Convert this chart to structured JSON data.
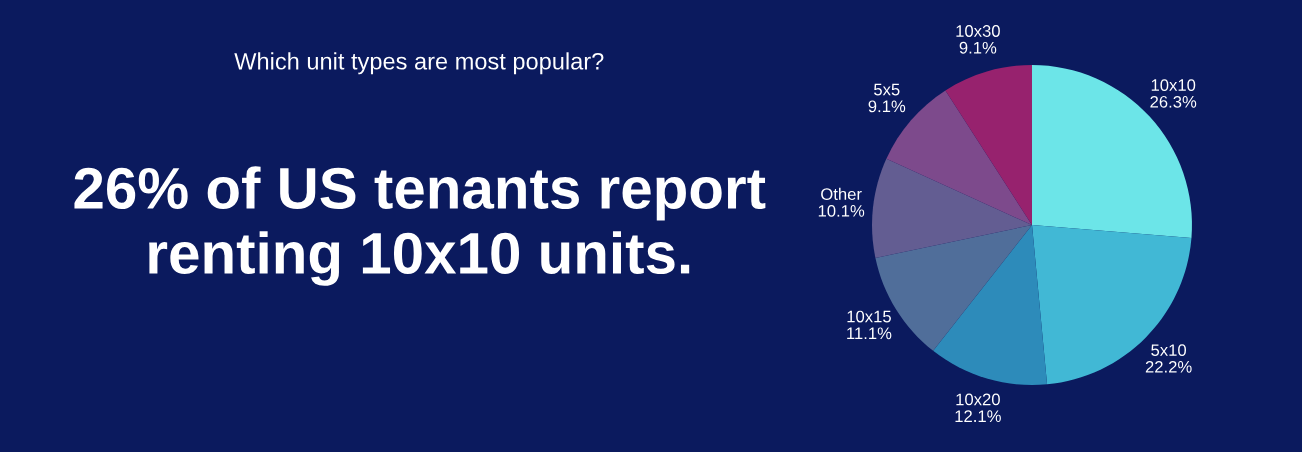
{
  "chart_data": {
    "type": "pie",
    "title": "Which unit types are most popular?",
    "subtitle": "26% of US tenants report renting 10x10 units.",
    "categories": [
      "10x10",
      "5x10",
      "10x20",
      "10x15",
      "Other",
      "5x5",
      "10x30"
    ],
    "values": [
      26.3,
      22.2,
      12.1,
      11.1,
      10.1,
      9.1,
      9.1
    ],
    "colors": [
      "#6ce5e8",
      "#41b8d5",
      "#2d8bba",
      "#506e9a",
      "#635d92",
      "#7d4a8c",
      "#97226e"
    ],
    "value_labels": [
      "26.3%",
      "22.2%",
      "12.1%",
      "11.1%",
      "10.1%",
      "9.1%",
      "9.1%"
    ]
  }
}
